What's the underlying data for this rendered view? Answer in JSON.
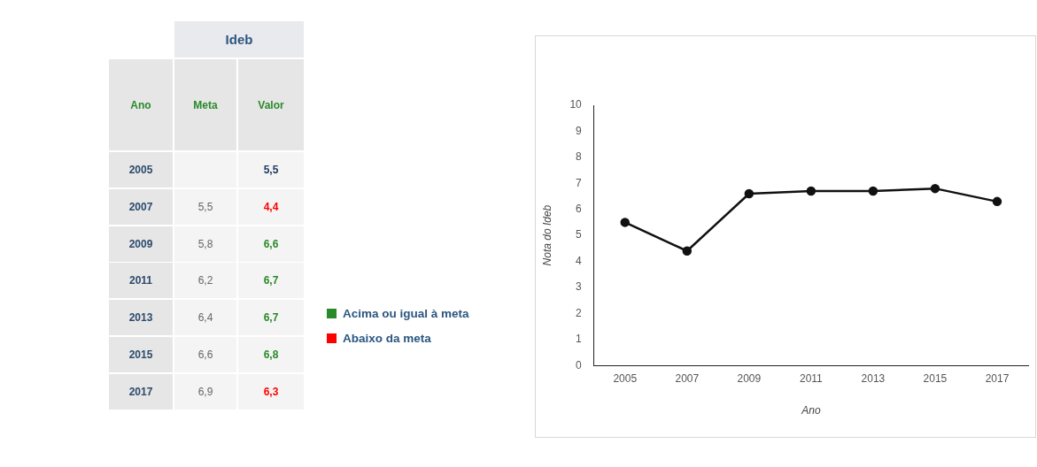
{
  "chart_data": [
    {
      "type": "heatmap",
      "title": "Ideb",
      "ylabel": "Ano",
      "categories": [
        "Meta",
        "Valor"
      ],
      "y_categories": [
        "2005",
        "2007",
        "2009",
        "2011",
        "2013",
        "2015",
        "2017"
      ],
      "cells": [
        [
          null,
          5.5
        ],
        [
          5.5,
          4.4
        ],
        [
          5.8,
          6.6
        ],
        [
          6.2,
          6.7
        ],
        [
          6.4,
          6.7
        ],
        [
          6.6,
          6.8
        ],
        [
          6.9,
          6.3
        ]
      ],
      "cell_labels": [
        [
          null,
          "5,5"
        ],
        [
          "5,5",
          "4,4"
        ],
        [
          "5,8",
          "6,6"
        ],
        [
          "6,2",
          "6,7"
        ],
        [
          "6,4",
          "6,7"
        ],
        [
          "6,6",
          "6,8"
        ],
        [
          "6,9",
          "6,3"
        ]
      ],
      "annotations": [
        "Acima ou igual à meta",
        "Abaixo da meta"
      ]
    },
    {
      "type": "line",
      "xlabel": "Ano",
      "ylabel": "Nota do Ideb",
      "categories": [
        "2005",
        "2007",
        "2009",
        "2011",
        "2013",
        "2015",
        "2017"
      ],
      "series": [
        {
          "color": "#111111",
          "values": [
            5.5,
            4.4,
            6.6,
            6.7,
            6.7,
            6.8,
            6.3
          ]
        }
      ],
      "ylim": [
        0,
        10
      ],
      "yticks": [
        0,
        1,
        2,
        3,
        4,
        5,
        6,
        7,
        8,
        9,
        10
      ],
      "grid": false,
      "legend": false,
      "marker": "circle",
      "line_style": "solid"
    }
  ]
}
